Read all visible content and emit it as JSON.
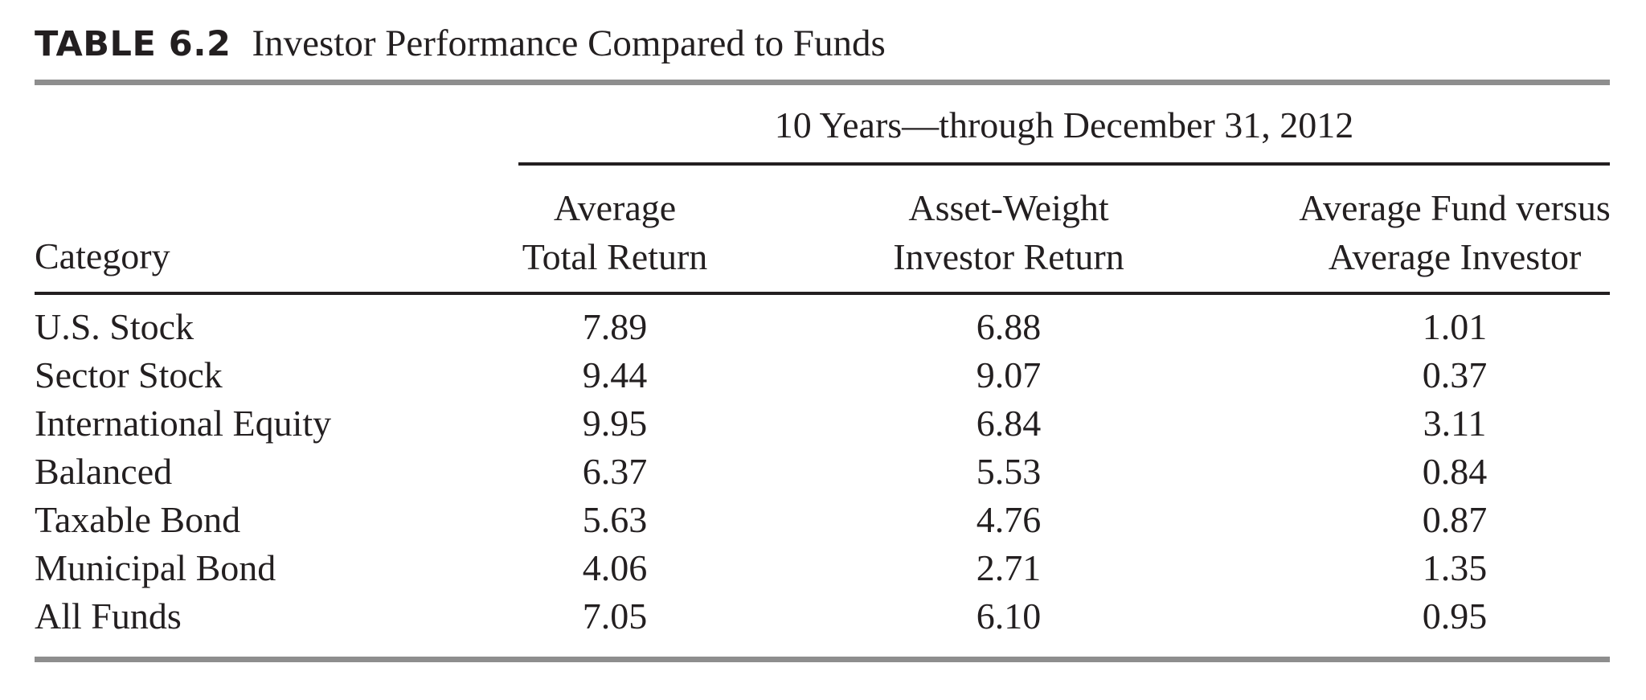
{
  "caption": {
    "label": "TABLE 6.2",
    "title": "Investor Performance Compared to Funds"
  },
  "table": {
    "span_header": "10 Years—through December 31, 2012",
    "headers": {
      "category": "Category",
      "avg_total_return": [
        "Average",
        "Total Return"
      ],
      "asset_weight_return": [
        "Asset-Weight",
        "Investor Return"
      ],
      "fund_vs_investor": [
        "Average Fund versus",
        "Average Investor"
      ]
    },
    "rows": [
      {
        "category": "U.S. Stock",
        "avg_total_return": "7.89",
        "asset_weight_return": "6.88",
        "fund_vs_investor": "1.01"
      },
      {
        "category": "Sector Stock",
        "avg_total_return": "9.44",
        "asset_weight_return": "9.07",
        "fund_vs_investor": "0.37"
      },
      {
        "category": "International Equity",
        "avg_total_return": "9.95",
        "asset_weight_return": "6.84",
        "fund_vs_investor": "3.11"
      },
      {
        "category": "Balanced",
        "avg_total_return": "6.37",
        "asset_weight_return": "5.53",
        "fund_vs_investor": "0.84"
      },
      {
        "category": "Taxable Bond",
        "avg_total_return": "5.63",
        "asset_weight_return": "4.76",
        "fund_vs_investor": "0.87"
      },
      {
        "category": "Municipal Bond",
        "avg_total_return": "4.06",
        "asset_weight_return": "2.71",
        "fund_vs_investor": "1.35"
      },
      {
        "category": "All Funds",
        "avg_total_return": "7.05",
        "asset_weight_return": "6.10",
        "fund_vs_investor": "0.95"
      }
    ]
  }
}
